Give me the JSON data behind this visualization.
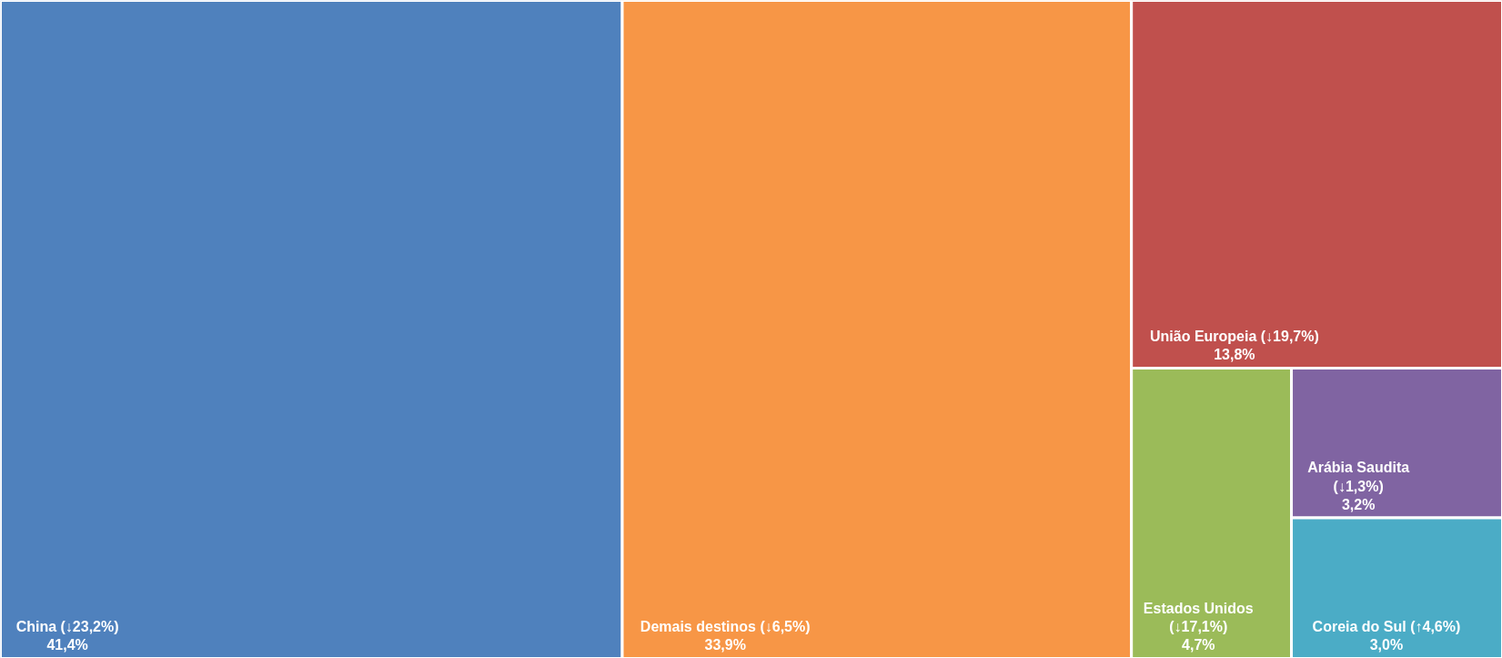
{
  "chart_data": {
    "type": "other",
    "categories": [
      "China (↓23,2%)",
      "Demais destinos (↓6,5%)",
      "União Europeia (↓19,7%)",
      "Estados Unidos (↓17,1%)",
      "Arábia Saudita (↓1,3%)",
      "Coreia do Sul (↑4,6%)"
    ],
    "values": [
      41.4,
      33.9,
      13.8,
      4.7,
      3.2,
      3.0
    ],
    "value_labels": [
      "41,4%",
      "33,9%",
      "13,8%",
      "4,7%",
      "3,2%",
      "3,0%"
    ],
    "colors": [
      "#4f81bd",
      "#f79646",
      "#c0504d",
      "#9bbb59",
      "#8064a2",
      "#4bacc6"
    ]
  }
}
